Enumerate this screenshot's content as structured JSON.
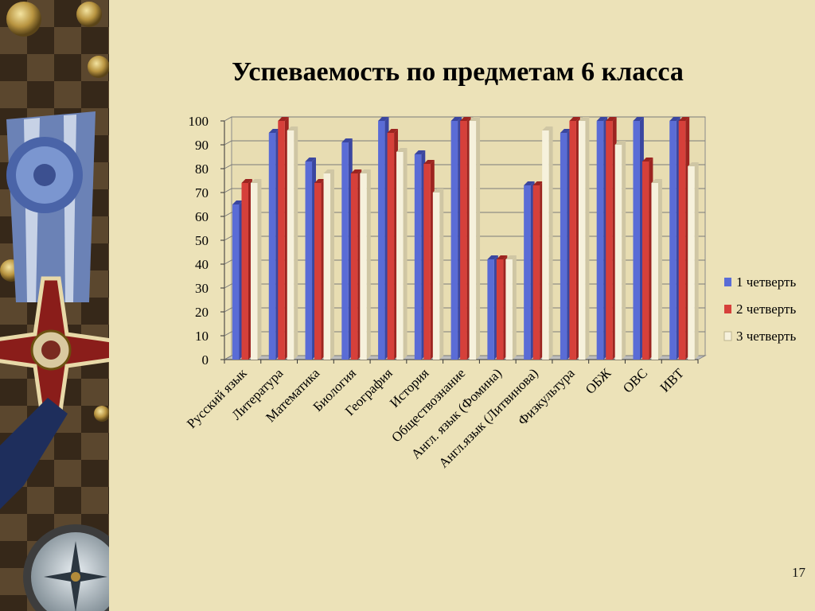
{
  "slide": {
    "title": "Успеваемость по предметам 6 класса",
    "page_number": "17"
  },
  "colors": {
    "series": [
      "#5a6cd6",
      "#d6403a",
      "#f6f1dc"
    ],
    "series_side": [
      "#3a46a0",
      "#9c2420",
      "#cfc6a4"
    ],
    "background": "#ece2b8"
  },
  "decor_icons": [
    "medal-ribbon-icon",
    "cross-order-icon",
    "compass-icon",
    "button-icon"
  ],
  "chart_data": {
    "type": "bar",
    "categories": [
      "Русский язык",
      "Литература",
      "Математика",
      "Биология",
      "География",
      "История",
      "Обществознание",
      "Англ. язык (Фомина)",
      "Англ.язык (Литвинова)",
      "Физкультура",
      "ОБЖ",
      "ОВС",
      "ИВТ"
    ],
    "series": [
      {
        "name": "1 четверть",
        "values": [
          65,
          95,
          83,
          91,
          100,
          86,
          100,
          42,
          73,
          95,
          100,
          100,
          100
        ]
      },
      {
        "name": "2 четверть",
        "values": [
          74,
          100,
          74,
          78,
          95,
          82,
          100,
          42,
          73,
          100,
          100,
          83,
          100
        ]
      },
      {
        "name": "3 четверть",
        "values": [
          74,
          96,
          78,
          78,
          87,
          70,
          100,
          42,
          96,
          100,
          90,
          74,
          81
        ]
      }
    ],
    "ylim": [
      0,
      100
    ],
    "yticks": [
      0,
      10,
      20,
      30,
      40,
      50,
      60,
      70,
      80,
      90,
      100
    ],
    "grid": true,
    "legend": "right",
    "xlabel": "",
    "ylabel": "",
    "view": "3d-columns"
  }
}
